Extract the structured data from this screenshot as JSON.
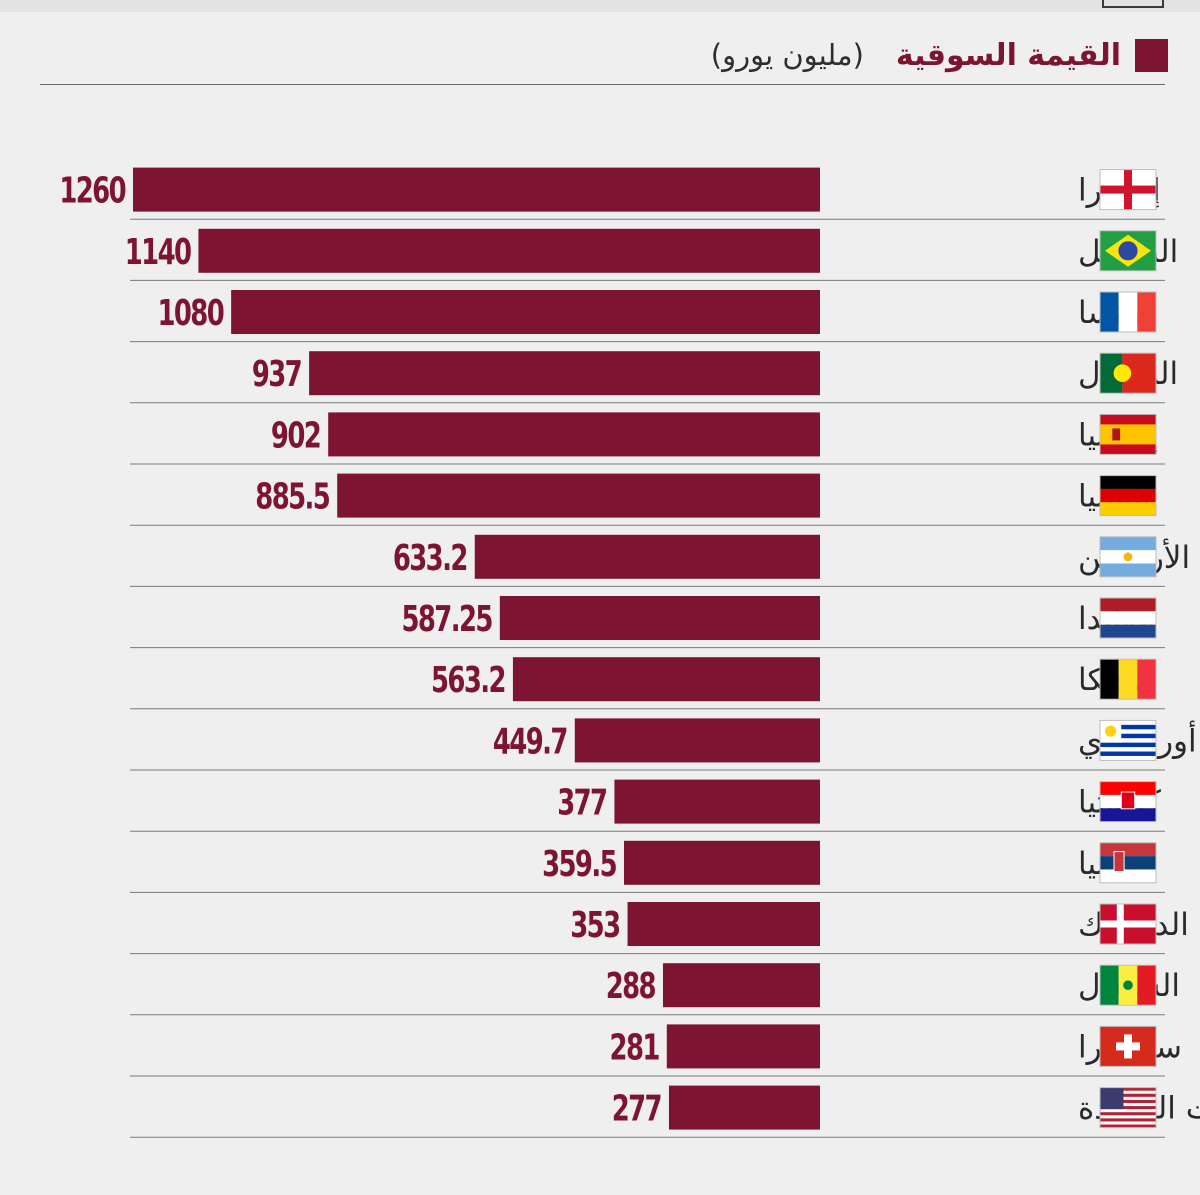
{
  "legend": {
    "label": "القيمة السوقية",
    "unit": "(مليون يورو)",
    "color": "#7d1431"
  },
  "chart_data": {
    "type": "bar",
    "orientation": "horizontal",
    "title": "",
    "xlabel": "",
    "ylabel": "",
    "series": [
      {
        "name": "القيمة السوقية",
        "values": [
          1260,
          1140,
          1080,
          937,
          902,
          885.5,
          633.2,
          587.25,
          563.2,
          449.7,
          377,
          359.5,
          353,
          288,
          281,
          277
        ]
      }
    ],
    "categories": [
      "إنجلترا",
      "البرازيل",
      "فرنسا",
      "البرتغال",
      "إسبانيا",
      "ألمانيا",
      "الأرجنتين",
      "هولندا",
      "بلجيكا",
      "أوروغواي",
      "كرواتيا",
      "صربيا",
      "الدنمارك",
      "السنغال",
      "سويسرا",
      "الولايات المتحدة"
    ],
    "value_labels": [
      "1260",
      "1140",
      "1080",
      "937",
      "902",
      "885.5",
      "633.2",
      "587.25",
      "563.2",
      "449.7",
      "377",
      "359.5",
      "353",
      "288",
      "281",
      "277"
    ],
    "flags": [
      "england-flag-icon",
      "brazil-flag-icon",
      "france-flag-icon",
      "portugal-flag-icon",
      "spain-flag-icon",
      "germany-flag-icon",
      "argentina-flag-icon",
      "netherlands-flag-icon",
      "belgium-flag-icon",
      "uruguay-flag-icon",
      "croatia-flag-icon",
      "serbia-flag-icon",
      "denmark-flag-icon",
      "senegal-flag-icon",
      "switzerland-flag-icon",
      "usa-flag-icon"
    ],
    "xlim": [
      0,
      1260
    ],
    "bar_direction": "right-to-left",
    "grid": false,
    "legend_position": "top-right"
  }
}
